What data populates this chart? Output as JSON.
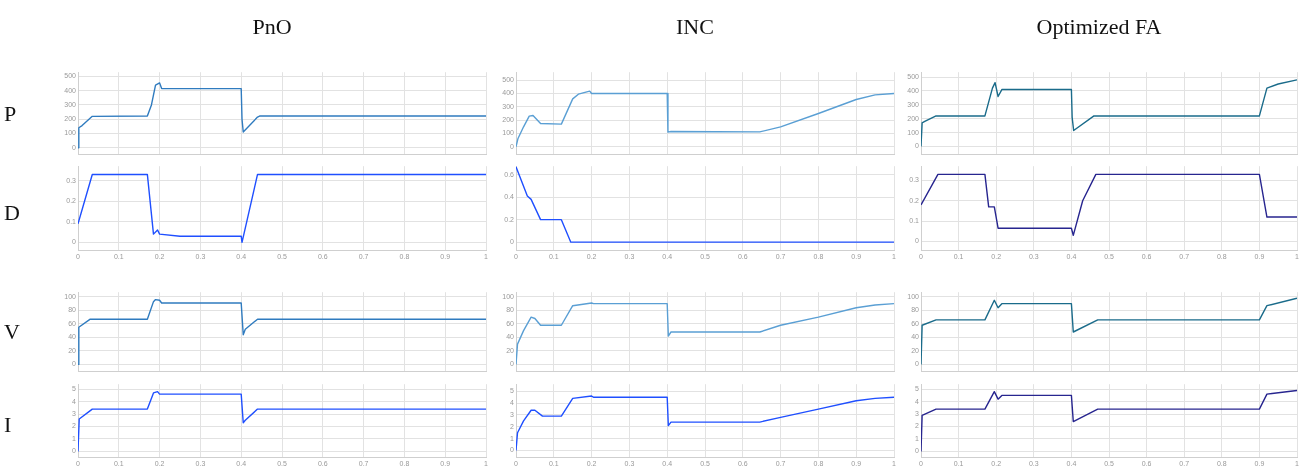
{
  "chart_data": [
    {
      "type": "line",
      "title": "PnO",
      "ylabel": "P",
      "x": [
        0,
        0.002,
        0.01,
        0.035,
        0.17,
        0.18,
        0.19,
        0.2,
        0.205,
        0.4,
        0.402,
        0.405,
        0.44,
        0.445,
        1
      ],
      "series": [
        {
          "color": "#2f7bbf",
          "values": [
            0,
            140,
            155,
            220,
            222,
            300,
            440,
            455,
            415,
            415,
            200,
            110,
            215,
            222,
            222
          ]
        }
      ],
      "xlim": [
        0,
        1
      ],
      "ylim": [
        -50,
        530
      ],
      "xticks": [
        0,
        0.1,
        0.2,
        0.3,
        0.4,
        0.5,
        0.6,
        0.7,
        0.8,
        0.9,
        1
      ],
      "yticks": [
        0,
        100,
        200,
        300,
        400,
        500
      ],
      "grid": true,
      "tick_labels": "y"
    },
    {
      "type": "line",
      "title": "INC",
      "x": [
        0,
        0.005,
        0.02,
        0.035,
        0.045,
        0.065,
        0.12,
        0.15,
        0.165,
        0.195,
        0.2,
        0.4,
        0.402,
        0.41,
        0.645,
        0.7,
        0.8,
        0.9,
        0.95,
        1
      ],
      "series": [
        {
          "color": "#5a9fd4",
          "values": [
            0,
            60,
            150,
            230,
            235,
            175,
            170,
            360,
            395,
            418,
            400,
            400,
            110,
            115,
            112,
            150,
            250,
            355,
            390,
            400
          ]
        }
      ],
      "xlim": [
        0,
        1
      ],
      "ylim": [
        -60,
        560
      ],
      "xticks": [
        0,
        0.1,
        0.2,
        0.3,
        0.4,
        0.5,
        0.6,
        0.7,
        0.8,
        0.9,
        1
      ],
      "yticks": [
        0,
        100,
        200,
        300,
        400,
        500
      ],
      "grid": true,
      "tick_labels": "y"
    },
    {
      "type": "line",
      "title": "Optimized FA",
      "x": [
        0,
        0.003,
        0.01,
        0.04,
        0.17,
        0.19,
        0.197,
        0.205,
        0.215,
        0.4,
        0.402,
        0.406,
        0.46,
        0.9,
        0.92,
        0.95,
        1
      ],
      "series": [
        {
          "color": "#1a6b8a",
          "values": [
            0,
            170,
            180,
            220,
            220,
            420,
            460,
            360,
            410,
            410,
            210,
            115,
            220,
            220,
            420,
            450,
            480
          ]
        }
      ],
      "xlim": [
        0,
        1
      ],
      "ylim": [
        -60,
        535
      ],
      "xticks": [
        0,
        0.1,
        0.2,
        0.3,
        0.4,
        0.5,
        0.6,
        0.7,
        0.8,
        0.9,
        1
      ],
      "yticks": [
        0,
        100,
        200,
        300,
        400,
        500
      ],
      "grid": true,
      "tick_labels": "y"
    },
    {
      "type": "line",
      "ylabel": "D",
      "x": [
        0,
        0.035,
        0.17,
        0.185,
        0.195,
        0.2,
        0.25,
        0.4,
        0.402,
        0.44,
        1
      ],
      "series": [
        {
          "color": "#1f4fff",
          "values": [
            0.09,
            0.33,
            0.33,
            0.04,
            0.06,
            0.04,
            0.03,
            0.03,
            0,
            0.33,
            0.33
          ]
        }
      ],
      "xlim": [
        0,
        1
      ],
      "ylim": [
        -0.04,
        0.37
      ],
      "xticks": [
        0,
        0.1,
        0.2,
        0.3,
        0.4,
        0.5,
        0.6,
        0.7,
        0.8,
        0.9,
        1
      ],
      "yticks": [
        0,
        0.1,
        0.2,
        0.3
      ],
      "grid": true
    },
    {
      "type": "line",
      "x": [
        0,
        0.03,
        0.04,
        0.065,
        0.12,
        0.145,
        1
      ],
      "series": [
        {
          "color": "#1f4fff",
          "values": [
            0.67,
            0.41,
            0.38,
            0.2,
            0.2,
            0,
            0
          ]
        }
      ],
      "xlim": [
        0,
        1
      ],
      "ylim": [
        -0.075,
        0.675
      ],
      "xticks": [
        0,
        0.1,
        0.2,
        0.3,
        0.4,
        0.5,
        0.6,
        0.7,
        0.8,
        0.9,
        1
      ],
      "yticks": [
        0,
        0.2,
        0.4,
        0.6
      ],
      "grid": true
    },
    {
      "type": "line",
      "x": [
        0,
        0.045,
        0.17,
        0.18,
        0.195,
        0.205,
        0.4,
        0.405,
        0.43,
        0.465,
        0.9,
        0.92,
        1
      ],
      "series": [
        {
          "color": "#27258f",
          "values": [
            0.18,
            0.33,
            0.33,
            0.17,
            0.17,
            0.065,
            0.065,
            0.03,
            0.2,
            0.33,
            0.33,
            0.12,
            0.12
          ]
        }
      ],
      "xlim": [
        0,
        1
      ],
      "ylim": [
        -0.045,
        0.37
      ],
      "xticks": [
        0,
        0.1,
        0.2,
        0.3,
        0.4,
        0.5,
        0.6,
        0.7,
        0.8,
        0.9,
        1
      ],
      "yticks": [
        0,
        0.1,
        0.2,
        0.3
      ],
      "grid": true
    },
    {
      "type": "line",
      "ylabel": "V",
      "x": [
        0,
        0.002,
        0.03,
        0.17,
        0.185,
        0.19,
        0.2,
        0.205,
        0.4,
        0.405,
        0.41,
        0.44,
        1
      ],
      "series": [
        {
          "color": "#2f7bbf",
          "values": [
            0,
            55,
            67,
            67,
            93,
            96,
            95,
            91,
            91,
            44,
            52,
            67,
            67
          ]
        }
      ],
      "xlim": [
        0,
        1
      ],
      "ylim": [
        -11,
        107
      ],
      "xticks": [
        0,
        0.1,
        0.2,
        0.3,
        0.4,
        0.5,
        0.6,
        0.7,
        0.8,
        0.9,
        1
      ],
      "yticks": [
        0,
        20,
        40,
        60,
        80,
        100
      ],
      "grid": true,
      "tick_labels": "y"
    },
    {
      "type": "line",
      "x": [
        0,
        0.004,
        0.02,
        0.04,
        0.05,
        0.065,
        0.12,
        0.15,
        0.2,
        0.205,
        0.4,
        0.403,
        0.41,
        0.645,
        0.7,
        0.8,
        0.9,
        0.95,
        1
      ],
      "series": [
        {
          "color": "#5a9fd4",
          "values": [
            0,
            30,
            50,
            70,
            68,
            58,
            58,
            87,
            91,
            90,
            90,
            42,
            48,
            48,
            58,
            70,
            84,
            88,
            90
          ]
        }
      ],
      "xlim": [
        0,
        1
      ],
      "ylim": [
        -11,
        107
      ],
      "xticks": [
        0,
        0.1,
        0.2,
        0.3,
        0.4,
        0.5,
        0.6,
        0.7,
        0.8,
        0.9,
        1
      ],
      "yticks": [
        0,
        20,
        40,
        60,
        80,
        100
      ],
      "grid": true,
      "tick_labels": "y"
    },
    {
      "type": "line",
      "x": [
        0,
        0.003,
        0.04,
        0.17,
        0.195,
        0.205,
        0.215,
        0.4,
        0.405,
        0.47,
        0.9,
        0.92,
        1
      ],
      "series": [
        {
          "color": "#1a6b8a",
          "values": [
            0,
            58,
            66,
            66,
            95,
            84,
            90,
            90,
            48,
            66,
            66,
            87,
            98
          ]
        }
      ],
      "xlim": [
        0,
        1
      ],
      "ylim": [
        -11,
        107
      ],
      "xticks": [
        0,
        0.1,
        0.2,
        0.3,
        0.4,
        0.5,
        0.6,
        0.7,
        0.8,
        0.9,
        1
      ],
      "yticks": [
        0,
        20,
        40,
        60,
        80,
        100
      ],
      "grid": true,
      "tick_labels": "y"
    },
    {
      "type": "line",
      "ylabel": "I",
      "x": [
        0,
        0.003,
        0.035,
        0.17,
        0.185,
        0.195,
        0.2,
        0.4,
        0.405,
        0.41,
        0.44,
        1
      ],
      "series": [
        {
          "color": "#1f4fff",
          "values": [
            0,
            2.6,
            3.4,
            3.4,
            4.7,
            4.8,
            4.6,
            4.6,
            2.3,
            2.5,
            3.4,
            3.4
          ]
        }
      ],
      "xlim": [
        0,
        1
      ],
      "ylim": [
        -0.5,
        5.4
      ],
      "xticks": [
        0,
        0.1,
        0.2,
        0.3,
        0.4,
        0.5,
        0.6,
        0.7,
        0.8,
        0.9,
        1
      ],
      "yticks": [
        0,
        1,
        2,
        3,
        4,
        5
      ],
      "grid": true
    },
    {
      "type": "line",
      "x": [
        0,
        0.004,
        0.02,
        0.04,
        0.05,
        0.07,
        0.12,
        0.15,
        0.2,
        0.205,
        0.4,
        0.403,
        0.41,
        0.645,
        0.7,
        0.8,
        0.9,
        0.95,
        1
      ],
      "series": [
        {
          "color": "#1f4fff",
          "values": [
            0,
            1.5,
            2.5,
            3.4,
            3.4,
            2.9,
            2.9,
            4.4,
            4.6,
            4.5,
            4.5,
            2.1,
            2.4,
            2.4,
            2.8,
            3.5,
            4.2,
            4.4,
            4.5
          ]
        }
      ],
      "xlim": [
        0,
        1
      ],
      "ylim": [
        -0.6,
        5.6
      ],
      "xticks": [
        0,
        0.1,
        0.2,
        0.3,
        0.4,
        0.5,
        0.6,
        0.7,
        0.8,
        0.9,
        1
      ],
      "yticks": [
        0,
        1,
        2,
        3,
        4,
        5
      ],
      "grid": true
    },
    {
      "type": "line",
      "x": [
        0,
        0.003,
        0.04,
        0.17,
        0.195,
        0.205,
        0.215,
        0.4,
        0.405,
        0.47,
        0.9,
        0.92,
        1
      ],
      "series": [
        {
          "color": "#27258f",
          "values": [
            0,
            2.9,
            3.4,
            3.4,
            4.8,
            4.2,
            4.5,
            4.5,
            2.4,
            3.4,
            3.4,
            4.6,
            4.9
          ]
        }
      ],
      "xlim": [
        0,
        1
      ],
      "ylim": [
        -0.5,
        5.4
      ],
      "xticks": [
        0,
        0.1,
        0.2,
        0.3,
        0.4,
        0.5,
        0.6,
        0.7,
        0.8,
        0.9,
        1
      ],
      "yticks": [
        0,
        1,
        2,
        3,
        4,
        5
      ],
      "grid": true
    }
  ]
}
